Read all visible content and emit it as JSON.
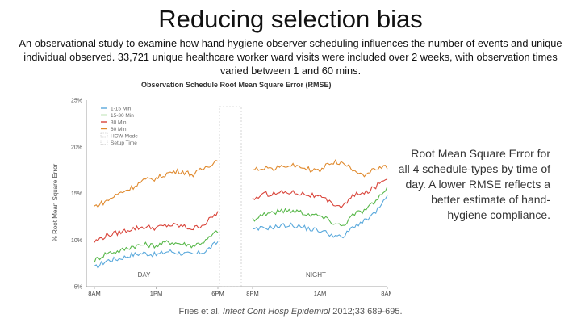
{
  "slide": {
    "title": "Reducing selection bias",
    "description": "An observational study to examine how hand hygiene observer scheduling influences the number of events and unique individual observed. 33,721 unique healthcare worker ward visits were included over 2 weeks, with observation times varied between 1 and 60 mins.",
    "side_text": "Root Mean Square Error for all 4 schedule-types by time of day. A lower RMSE reflects a better estimate of hand-hygiene compliance.",
    "citation": {
      "authors": "Fries et al.",
      "journal": "Infect Cont Hosp Epidemiol",
      "details": "2012;33:689-695."
    }
  },
  "colors": {
    "series_1_15": "#5aa9dc",
    "series_15_30": "#58b84a",
    "series_30": "#d9443a",
    "series_60": "#e08a2e",
    "setup": "#bbbbbb"
  },
  "chart_data": {
    "type": "line",
    "title": "Observation Schedule Root Mean Square Error (RMSE)",
    "ylabel": "% Root Mean Square Error",
    "ylim": [
      5,
      25
    ],
    "yticks": [
      "5%",
      "10%",
      "15%",
      "20%",
      "25%"
    ],
    "xticks": [
      "8AM",
      "1PM",
      "6PM",
      "8PM",
      "1AM",
      "8AM"
    ],
    "segments": [
      "DAY",
      "NIGHT"
    ],
    "legend": [
      "1-15 Min",
      "15-30 Min",
      "30 Min",
      "60 Min",
      "HCW-Mode",
      "Setup Time"
    ],
    "legend_position": "top-left",
    "day_x": [
      0,
      1,
      2,
      3,
      4,
      5,
      6,
      7,
      8,
      9,
      10
    ],
    "night_x": [
      0,
      1,
      2,
      3,
      4,
      5,
      6,
      7,
      8,
      9,
      10,
      11,
      12
    ],
    "series": [
      {
        "name": "1-15 Min",
        "day": [
          7.0,
          7.8,
          8.0,
          8.4,
          8.6,
          8.4,
          8.8,
          8.6,
          8.4,
          8.8,
          9.8
        ],
        "night": [
          11.0,
          11.3,
          11.4,
          11.6,
          11.5,
          11.2,
          11.0,
          10.6,
          10.2,
          11.5,
          12.0,
          13.0,
          14.6
        ]
      },
      {
        "name": "15-30 Min",
        "day": [
          7.8,
          8.6,
          8.8,
          9.3,
          9.5,
          9.4,
          9.8,
          9.6,
          9.4,
          9.9,
          11.0
        ],
        "night": [
          12.2,
          12.8,
          13.0,
          13.2,
          13.1,
          12.8,
          12.6,
          12.0,
          11.5,
          12.8,
          13.2,
          14.2,
          15.5
        ]
      },
      {
        "name": "30 Min",
        "day": [
          9.8,
          10.5,
          10.8,
          11.2,
          11.4,
          11.3,
          11.6,
          11.5,
          11.2,
          11.8,
          13.0
        ],
        "night": [
          14.4,
          14.9,
          15.0,
          15.2,
          15.1,
          14.9,
          14.6,
          14.0,
          13.6,
          14.8,
          15.0,
          15.8,
          16.8
        ]
      },
      {
        "name": "60 Min",
        "day": [
          13.6,
          14.2,
          15.0,
          15.6,
          16.4,
          16.6,
          17.2,
          17.4,
          17.0,
          17.8,
          18.6
        ],
        "night": [
          17.5,
          17.8,
          17.6,
          18.0,
          17.9,
          17.6,
          17.4,
          18.4,
          18.2,
          17.6,
          17.0,
          17.6,
          17.8
        ]
      }
    ]
  }
}
